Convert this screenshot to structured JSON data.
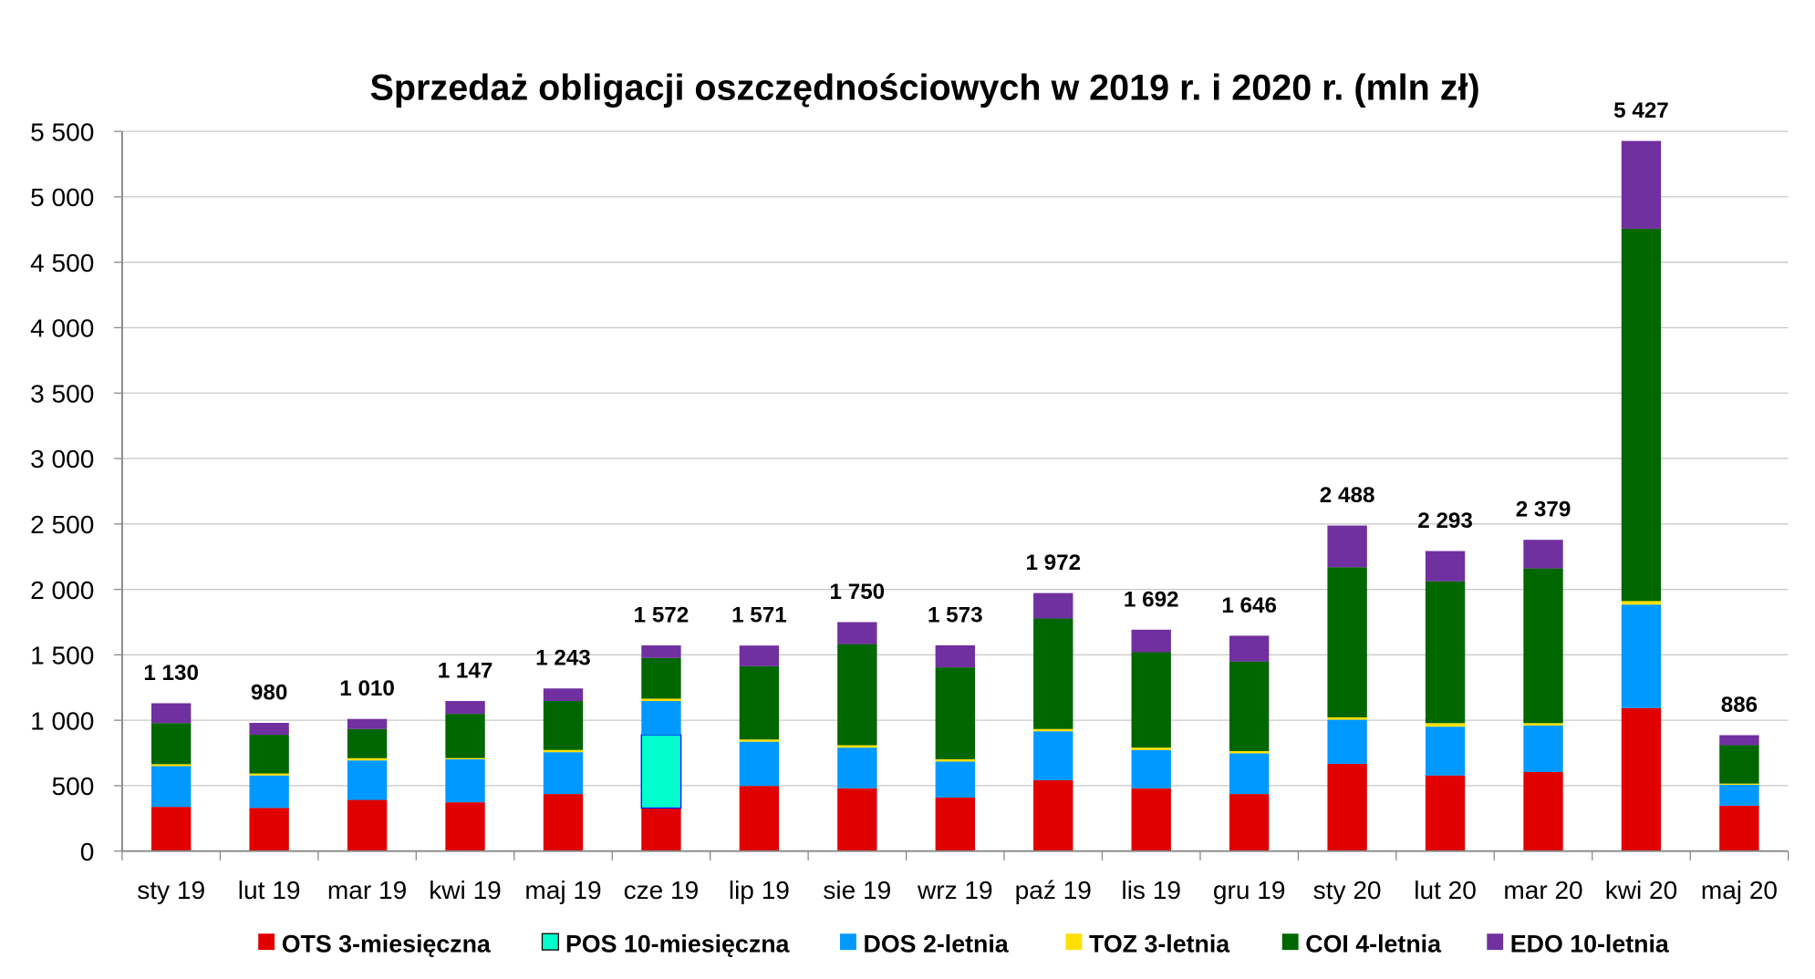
{
  "chart_data": {
    "type": "bar",
    "stacked": true,
    "title": "Sprzedaż obligacji oszczędnościowych w 2019 r. i 2020 r. (mln zł)",
    "xlabel": "",
    "ylabel": "",
    "ylim": [
      0,
      5500
    ],
    "yticks": [
      "0",
      "500",
      "1 000",
      "1 500",
      "2 000",
      "2 500",
      "3 000",
      "3 500",
      "4 000",
      "4 500",
      "5 000",
      "5 500"
    ],
    "grid": true,
    "legend": "bottom",
    "categories": [
      "sty 19",
      "lut 19",
      "mar 19",
      "kwi 19",
      "maj 19",
      "cze 19",
      "lip 19",
      "sie 19",
      "wrz 19",
      "paź 19",
      "lis 19",
      "gru 19",
      "sty 20",
      "lut 20",
      "mar 20",
      "kwi 20",
      "maj 20"
    ],
    "totals": [
      "1 130",
      "980",
      "1 010",
      "1 147",
      "1 243",
      "1 572",
      "1 571",
      "1 750",
      "1 573",
      "1 972",
      "1 692",
      "1 646",
      "2 488",
      "2 293",
      "2 379",
      "5 427",
      "886"
    ],
    "series": [
      {
        "name": "OTS 3-miesięczna",
        "color": "#E00000",
        "values": [
          338,
          330,
          391,
          373,
          436,
          329,
          498,
          480,
          409,
          542,
          480,
          436,
          667,
          578,
          604,
          1093,
          347
        ]
      },
      {
        "name": "POS 10-miesięczna",
        "color": "#00FFCC",
        "label_color": "#0000FF",
        "values": [
          0,
          0,
          0,
          0,
          0,
          560,
          0,
          0,
          0,
          0,
          0,
          0,
          0,
          0,
          0,
          0,
          0
        ]
      },
      {
        "name": "DOS 2-letnia",
        "color": "#0099FF",
        "values": [
          311,
          248,
          302,
          329,
          320,
          258,
          338,
          311,
          275,
          374,
          293,
          311,
          337,
          373,
          356,
          791,
          160
        ]
      },
      {
        "name": "TOZ 3-letnia",
        "color": "#FFE000",
        "values": [
          15,
          15,
          17,
          9,
          17,
          18,
          17,
          18,
          18,
          17,
          18,
          17,
          18,
          27,
          18,
          27,
          9
        ]
      },
      {
        "name": "COI 4-letnia",
        "color": "#006600",
        "values": [
          314,
          296,
          223,
          338,
          374,
          311,
          560,
          773,
          702,
          845,
          729,
          685,
          1147,
          1084,
          1182,
          2845,
          293
        ]
      },
      {
        "name": "EDO 10-letnia",
        "color": "#7030A0",
        "values": [
          152,
          91,
          77,
          98,
          96,
          96,
          158,
          168,
          169,
          194,
          172,
          197,
          319,
          231,
          219,
          671,
          77
        ]
      }
    ]
  }
}
